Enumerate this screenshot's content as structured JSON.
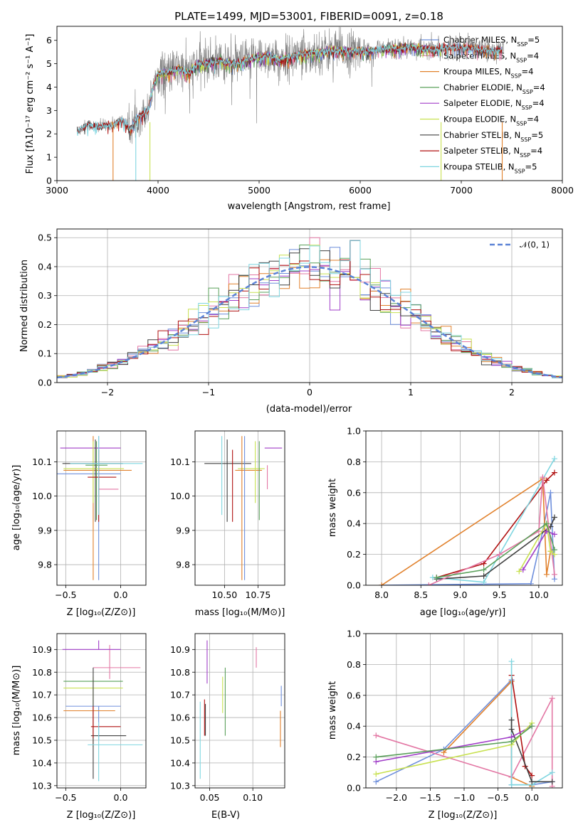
{
  "colors": {
    "Chabrier MILES": "#6e8fdc",
    "Salpeter MILES": "#e377a4",
    "Kroupa MILES": "#e1812c",
    "Chabrier ELODIE": "#5aa05a",
    "Salpeter ELODIE": "#a03cc8",
    "Kroupa ELODIE": "#c8e150",
    "Chabrier STELIB": "#404040",
    "Salpeter STELIB": "#b01010",
    "Kroupa STELIB": "#7fd6e0",
    "data": "#7f7f7f",
    "gauss": "#5b82d6",
    "grid": "#b0b0b0"
  },
  "chart_data": [
    {
      "type": "line",
      "title": "PLATE=1499, MJD=53001, FIBERID=0091, z=0.18",
      "xlabel": "wavelength [Angstrom, rest frame]",
      "ylabel": "Flux [fλ10⁻¹⁷ erg cm⁻² s⁻¹ A⁻¹]",
      "xlim": [
        3000,
        8000
      ],
      "ylim": [
        0,
        6.6
      ],
      "xticks": [
        "3000",
        "4000",
        "5000",
        "6000",
        "7000",
        "8000"
      ],
      "yticks": [
        "0",
        "1",
        "2",
        "3",
        "4",
        "5",
        "6"
      ],
      "grid": false,
      "legend_position": "top-right",
      "legend": [
        {
          "label": "Chabrier MILES, N",
          "sub": "SSP",
          "tail": "=5",
          "color_key": "Chabrier MILES"
        },
        {
          "label": "Salpeter MILES, N",
          "sub": "SSP",
          "tail": "=4",
          "color_key": "Salpeter MILES"
        },
        {
          "label": "Kroupa MILES, N",
          "sub": "SSP",
          "tail": "=4",
          "color_key": "Kroupa MILES"
        },
        {
          "label": "Chabrier ELODIE, N",
          "sub": "SSP",
          "tail": "=4",
          "color_key": "Chabrier ELODIE"
        },
        {
          "label": "Salpeter ELODIE, N",
          "sub": "SSP",
          "tail": "=4",
          "color_key": "Salpeter ELODIE"
        },
        {
          "label": "Kroupa ELODIE, N",
          "sub": "SSP",
          "tail": "=4",
          "color_key": "Kroupa ELODIE"
        },
        {
          "label": "Chabrier STELIB, N",
          "sub": "SSP",
          "tail": "=5",
          "color_key": "Chabrier STELIB"
        },
        {
          "label": "Salpeter STELIB, N",
          "sub": "SSP",
          "tail": "=4",
          "color_key": "Salpeter STELIB"
        },
        {
          "label": "Kroupa STELIB, N",
          "sub": "SSP",
          "tail": "=5",
          "color_key": "Kroupa STELIB"
        }
      ],
      "continuum": [
        [
          3200,
          2.1
        ],
        [
          3300,
          2.4
        ],
        [
          3400,
          2.3
        ],
        [
          3550,
          2.4
        ],
        [
          3650,
          2.6
        ],
        [
          3720,
          2.2
        ],
        [
          3800,
          2.7
        ],
        [
          3900,
          3.0
        ],
        [
          3950,
          4.0
        ],
        [
          4000,
          4.6
        ],
        [
          4100,
          4.6
        ],
        [
          4200,
          4.8
        ],
        [
          4300,
          4.6
        ],
        [
          4400,
          5.0
        ],
        [
          4600,
          5.1
        ],
        [
          4800,
          5.0
        ],
        [
          4900,
          5.2
        ],
        [
          5100,
          5.35
        ],
        [
          5200,
          5.15
        ],
        [
          5400,
          5.4
        ],
        [
          5700,
          5.55
        ],
        [
          5900,
          5.55
        ],
        [
          6100,
          5.55
        ],
        [
          6300,
          5.65
        ],
        [
          6500,
          5.7
        ],
        [
          6700,
          5.6
        ],
        [
          6900,
          5.7
        ],
        [
          7100,
          5.65
        ],
        [
          7300,
          5.55
        ],
        [
          7400,
          5.6
        ]
      ],
      "spectrum_noise": 0.45
    },
    {
      "type": "line",
      "xlabel": "(data-model)/error",
      "ylabel": "Normed distribution",
      "xlim": [
        -2.5,
        2.5
      ],
      "ylim": [
        0,
        0.53
      ],
      "xticks": [
        "−2",
        "−1",
        "0",
        "1",
        "2"
      ],
      "yticks": [
        "0.0",
        "0.1",
        "0.2",
        "0.3",
        "0.4",
        "0.5"
      ],
      "grid": true,
      "legend_position": "top-right",
      "gauss_label": "𝒩(0, 1)",
      "bin_width": 0.1
    },
    {
      "type": "scatter",
      "xlabel": "Z [log₁₀(Z/Z⊙)]",
      "ylabel": "age  [log₁₀(age/yr)]",
      "xlim": [
        -0.58,
        0.23
      ],
      "ylim": [
        9.74,
        10.19
      ],
      "xticks": [
        "−0.5",
        "0.0"
      ],
      "yticks": [
        "9.8",
        "9.9",
        "10.0",
        "10.1"
      ],
      "grid": true,
      "points": [
        {
          "c": "Chabrier MILES",
          "x": -0.2,
          "y": 10.065,
          "xe": [
            0.45,
            0.2
          ],
          "ye": [
            0.31,
            0.11
          ]
        },
        {
          "c": "Salpeter MILES",
          "x": -0.2,
          "y": 10.02,
          "xe": [
            0.0,
            0.18
          ],
          "ye": [
            0.0,
            0.07
          ]
        },
        {
          "c": "Kroupa MILES",
          "x": -0.25,
          "y": 10.075,
          "xe": [
            0.27,
            0.35
          ],
          "ye": [
            0.32,
            0.1
          ]
        },
        {
          "c": "Chabrier ELODIE",
          "x": -0.22,
          "y": 10.09,
          "xe": [
            0.1,
            0.1
          ],
          "ye": [
            0.16,
            0.07
          ]
        },
        {
          "c": "Salpeter ELODIE",
          "x": -0.2,
          "y": 10.14,
          "xe": [
            0.35,
            0.2
          ],
          "ye": [
            0.0,
            0.0
          ]
        },
        {
          "c": "Kroupa ELODIE",
          "x": -0.25,
          "y": 10.08,
          "xe": [
            0.27,
            0.28
          ],
          "ye": [
            0.1,
            0.08
          ]
        },
        {
          "c": "Chabrier STELIB",
          "x": -0.23,
          "y": 10.095,
          "xe": [
            0.3,
            0.25
          ],
          "ye": [
            0.17,
            0.07
          ]
        },
        {
          "c": "Salpeter STELIB",
          "x": -0.2,
          "y": 10.055,
          "xe": [
            0.1,
            0.16
          ],
          "ye": [
            0.13,
            0.08
          ]
        },
        {
          "c": "Kroupa STELIB",
          "x": -0.2,
          "y": 10.095,
          "xe": [
            0.26,
            0.4
          ],
          "ye": [
            0.15,
            0.08
          ]
        }
      ]
    },
    {
      "type": "scatter",
      "xlabel": "mass [log₁₀(M/M⊙)]",
      "ylabel": "",
      "xlim": [
        10.28,
        10.95
      ],
      "ylim": [
        9.74,
        10.19
      ],
      "xticks": [
        "10.50",
        "10.75"
      ],
      "yticks": [
        "9.8",
        "9.9",
        "10.0",
        "10.1"
      ],
      "grid": true,
      "points": [
        {
          "c": "Chabrier MILES",
          "x": 10.65,
          "y": 10.065,
          "xe": [
            0.0,
            0.0
          ],
          "ye": [
            0.31,
            0.11
          ]
        },
        {
          "c": "Salpeter MILES",
          "x": 10.82,
          "y": 10.02,
          "xe": [
            0.0,
            0.0
          ],
          "ye": [
            0.0,
            0.07
          ]
        },
        {
          "c": "Kroupa MILES",
          "x": 10.63,
          "y": 10.075,
          "xe": [
            0.0,
            0.0
          ],
          "ye": [
            0.32,
            0.1
          ]
        },
        {
          "c": "Chabrier ELODIE",
          "x": 10.76,
          "y": 10.09,
          "xe": [
            0.0,
            0.0
          ],
          "ye": [
            0.16,
            0.07
          ]
        },
        {
          "c": "Salpeter ELODIE",
          "x": 10.9,
          "y": 10.14,
          "xe": [
            0.0,
            0.0
          ],
          "ye": [
            0.0,
            0.0
          ]
        },
        {
          "c": "Kroupa ELODIE",
          "x": 10.73,
          "y": 10.08,
          "xe": [
            0.0,
            0.0
          ],
          "ye": [
            0.1,
            0.08
          ]
        },
        {
          "c": "Chabrier STELIB",
          "x": 10.52,
          "y": 10.095,
          "xe": [
            0.0,
            0.0
          ],
          "ye": [
            0.17,
            0.07
          ]
        },
        {
          "c": "Salpeter STELIB",
          "x": 10.56,
          "y": 10.055,
          "xe": [
            0.0,
            0.0
          ],
          "ye": [
            0.13,
            0.08
          ]
        },
        {
          "c": "Kroupa STELIB",
          "x": 10.48,
          "y": 10.095,
          "xe": [
            0.0,
            0.0
          ],
          "ye": [
            0.15,
            0.08
          ]
        }
      ],
      "hbars": [
        {
          "c": "Chabrier STELIB",
          "y": 10.095,
          "x0": 10.35,
          "x1": 10.7
        },
        {
          "c": "Kroupa ELODIE",
          "y": 10.08,
          "x0": 10.6,
          "x1": 10.8
        },
        {
          "c": "Kroupa MILES",
          "y": 10.075,
          "x0": 10.58,
          "x1": 10.78
        },
        {
          "c": "Salpeter ELODIE",
          "y": 10.14,
          "x0": 10.8,
          "x1": 10.93
        }
      ]
    },
    {
      "type": "line",
      "xlabel": "age  [log₁₀(age/yr)]",
      "ylabel": "mass weight",
      "xlim": [
        7.8,
        10.3
      ],
      "ylim": [
        0,
        1.0
      ],
      "xticks": [
        "8.0",
        "8.5",
        "9.0",
        "9.5",
        "10.0"
      ],
      "yticks": [
        "0.0",
        "0.2",
        "0.4",
        "0.6",
        "0.8",
        "1.0"
      ],
      "grid": true,
      "series": [
        {
          "c": "Chabrier MILES",
          "x": [
            8.0,
            9.9,
            10.05,
            10.15,
            10.2
          ],
          "y": [
            0.0,
            0.01,
            0.35,
            0.6,
            0.04
          ]
        },
        {
          "c": "Kroupa MILES",
          "x": [
            8.0,
            10.05,
            10.1,
            10.15
          ],
          "y": [
            0.0,
            0.69,
            0.07,
            0.22
          ]
        },
        {
          "c": "Salpeter STELIB",
          "x": [
            8.7,
            9.3,
            10.1,
            10.2
          ],
          "y": [
            0.05,
            0.14,
            0.68,
            0.73
          ]
        },
        {
          "c": "Kroupa STELIB",
          "x": [
            8.65,
            9.3,
            9.5,
            10.2
          ],
          "y": [
            0.05,
            0.02,
            0.2,
            0.82
          ]
        },
        {
          "c": "Chabrier STELIB",
          "x": [
            8.7,
            9.3,
            10.15,
            10.2
          ],
          "y": [
            0.04,
            0.06,
            0.38,
            0.44
          ]
        },
        {
          "c": "Salpeter MILES",
          "x": [
            8.6,
            9.5,
            10.0,
            10.05,
            10.2
          ],
          "y": [
            0.0,
            0.2,
            0.35,
            0.7,
            0.07
          ]
        },
        {
          "c": "Kroupa ELODIE",
          "x": [
            9.75,
            10.1,
            10.15,
            10.2
          ],
          "y": [
            0.09,
            0.4,
            0.22,
            0.2
          ]
        },
        {
          "c": "Salpeter ELODIE",
          "x": [
            9.8,
            10.1,
            10.2
          ],
          "y": [
            0.1,
            0.35,
            0.33
          ]
        },
        {
          "c": "Chabrier ELODIE",
          "x": [
            8.7,
            9.3,
            10.1,
            10.2
          ],
          "y": [
            0.05,
            0.1,
            0.4,
            0.23
          ]
        }
      ]
    },
    {
      "type": "scatter",
      "xlabel": "Z [log₁₀(Z/Z⊙)]",
      "ylabel": "mass [log₁₀(M/M⊙)]",
      "xlim": [
        -0.58,
        0.23
      ],
      "ylim": [
        10.29,
        10.97
      ],
      "xticks": [
        "−0.5",
        "0.0"
      ],
      "yticks": [
        "10.3",
        "10.4",
        "10.5",
        "10.6",
        "10.7",
        "10.8",
        "10.9"
      ],
      "grid": true,
      "points": [
        {
          "c": "Chabrier MILES",
          "x": -0.2,
          "y": 10.65,
          "xe": [
            0.3,
            0.2
          ],
          "ye": [
            0.15,
            0.0
          ]
        },
        {
          "c": "Salpeter MILES",
          "x": -0.1,
          "y": 10.82,
          "xe": [
            0.15,
            0.28
          ],
          "ye": [
            0.05,
            0.1
          ]
        },
        {
          "c": "Kroupa MILES",
          "x": -0.25,
          "y": 10.63,
          "xe": [
            0.27,
            0.2
          ],
          "ye": [
            0.16,
            0.0
          ]
        },
        {
          "c": "Chabrier ELODIE",
          "x": -0.25,
          "y": 10.76,
          "xe": [
            0.27,
            0.27
          ],
          "ye": [
            0.0,
            0.0
          ]
        },
        {
          "c": "Salpeter ELODIE",
          "x": -0.2,
          "y": 10.9,
          "xe": [
            0.33,
            0.2
          ],
          "ye": [
            0.0,
            0.04
          ]
        },
        {
          "c": "Kroupa ELODIE",
          "x": -0.25,
          "y": 10.73,
          "xe": [
            0.27,
            0.27
          ],
          "ye": [
            0.12,
            0.05
          ]
        },
        {
          "c": "Chabrier STELIB",
          "x": -0.25,
          "y": 10.52,
          "xe": [
            0.02,
            0.3
          ],
          "ye": [
            0.19,
            0.3
          ]
        },
        {
          "c": "Salpeter STELIB",
          "x": -0.25,
          "y": 10.56,
          "xe": [
            0.02,
            0.25
          ],
          "ye": [
            0.05,
            0.09
          ]
        },
        {
          "c": "Kroupa STELIB",
          "x": -0.2,
          "y": 10.48,
          "xe": [
            0.1,
            0.4
          ],
          "ye": [
            0.16,
            0.1
          ]
        }
      ]
    },
    {
      "type": "scatter",
      "xlabel": "E(B-V)",
      "ylabel": "",
      "xlim": [
        0.033,
        0.137
      ],
      "ylim": [
        10.29,
        10.97
      ],
      "xticks": [
        "0.05",
        "0.10"
      ],
      "yticks": [
        "10.3",
        "10.4",
        "10.5",
        "10.6",
        "10.7",
        "10.8",
        "10.9"
      ],
      "grid": true,
      "points": [
        {
          "c": "Chabrier MILES",
          "x": 0.133,
          "y": 10.65,
          "ye": [
            0.0,
            0.09
          ]
        },
        {
          "c": "Salpeter MILES",
          "x": 0.104,
          "y": 10.82,
          "ye": [
            0.0,
            0.09
          ]
        },
        {
          "c": "Kroupa MILES",
          "x": 0.132,
          "y": 10.63,
          "ye": [
            0.16,
            0.0
          ]
        },
        {
          "c": "Chabrier ELODIE",
          "x": 0.068,
          "y": 10.7,
          "ye": [
            0.18,
            0.12
          ]
        },
        {
          "c": "Salpeter ELODIE",
          "x": 0.047,
          "y": 10.85,
          "ye": [
            0.1,
            0.09
          ]
        },
        {
          "c": "Kroupa ELODIE",
          "x": 0.065,
          "y": 10.68,
          "ye": [
            0.06,
            0.1
          ]
        },
        {
          "c": "Chabrier STELIB",
          "x": 0.045,
          "y": 10.6,
          "ye": [
            0.08,
            0.06
          ]
        },
        {
          "c": "Salpeter STELIB",
          "x": 0.044,
          "y": 10.6,
          "ye": [
            0.08,
            0.08
          ]
        },
        {
          "c": "Kroupa STELIB",
          "x": 0.039,
          "y": 10.5,
          "ye": [
            0.17,
            0.17
          ]
        }
      ]
    },
    {
      "type": "line",
      "xlabel": "Z [log₁₀(Z/Z⊙)]",
      "ylabel": "mass weight",
      "xlim": [
        -2.45,
        0.45
      ],
      "ylim": [
        0,
        1.0
      ],
      "xticks": [
        "−2.0",
        "−1.5",
        "−1.0",
        "−0.5",
        "0.0"
      ],
      "yticks": [
        "0.0",
        "0.2",
        "0.4",
        "0.6",
        "0.8",
        "1.0"
      ],
      "grid": true,
      "series": [
        {
          "c": "Chabrier MILES",
          "x": [
            -2.3,
            -1.3,
            -0.3,
            -0.3,
            0.0,
            0.3
          ],
          "y": [
            0.04,
            0.25,
            0.7,
            0.02,
            0.02,
            0.04
          ]
        },
        {
          "c": "Kroupa MILES",
          "x": [
            -1.3,
            -0.3,
            -0.3,
            0.0
          ],
          "y": [
            0.23,
            0.69,
            0.07,
            0.01
          ]
        },
        {
          "c": "Salpeter MILES",
          "x": [
            -2.3,
            -0.3,
            0.3,
            0.3
          ],
          "y": [
            0.34,
            0.07,
            0.58,
            0.01
          ]
        },
        {
          "c": "Salpeter STELIB",
          "x": [
            -0.3,
            -0.1,
            0.0
          ],
          "y": [
            0.73,
            0.14,
            0.08
          ]
        },
        {
          "c": "Kroupa STELIB",
          "x": [
            -0.3,
            -0.3,
            0.0,
            0.3
          ],
          "y": [
            0.82,
            0.02,
            0.02,
            0.1
          ]
        },
        {
          "c": "Chabrier STELIB",
          "x": [
            -0.3,
            -0.3,
            0.0,
            0.3
          ],
          "y": [
            0.44,
            0.38,
            0.04,
            0.04
          ]
        },
        {
          "c": "Salpeter ELODIE",
          "x": [
            -2.3,
            -0.3,
            0.0
          ],
          "y": [
            0.17,
            0.33,
            0.4
          ]
        },
        {
          "c": "Kroupa ELODIE",
          "x": [
            -2.3,
            -0.3,
            0.0
          ],
          "y": [
            0.09,
            0.28,
            0.42
          ]
        },
        {
          "c": "Chabrier ELODIE",
          "x": [
            -2.3,
            -0.3,
            0.0
          ],
          "y": [
            0.2,
            0.3,
            0.4
          ]
        }
      ]
    }
  ]
}
